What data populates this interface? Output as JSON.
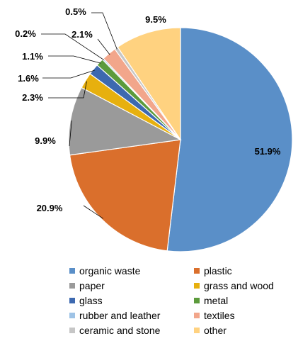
{
  "chart_data": {
    "type": "pie",
    "categories": [
      "organic waste",
      "plastic",
      "paper",
      "grass and wood",
      "glass",
      "metal",
      "rubber and leather",
      "textiles",
      "ceramic and stone",
      "other"
    ],
    "values": [
      51.9,
      20.9,
      9.9,
      2.3,
      1.6,
      1.1,
      0.2,
      2.1,
      0.5,
      9.5
    ],
    "data_labels": [
      "51.9%",
      "20.9%",
      "9.9%",
      "2.3%",
      "1.6%",
      "1.1%",
      "0.2%",
      "2.1%",
      "0.5%",
      "9.5%"
    ],
    "colors": [
      "#5A8FC8",
      "#DA6F2C",
      "#9A9A9A",
      "#E7B00E",
      "#3D69B0",
      "#5C9B3C",
      "#9EC3E6",
      "#F2A68B",
      "#C6C6C6",
      "#FFD280"
    ],
    "legend_position": "bottom",
    "start_angle": "12 o'clock",
    "direction": "clockwise"
  }
}
